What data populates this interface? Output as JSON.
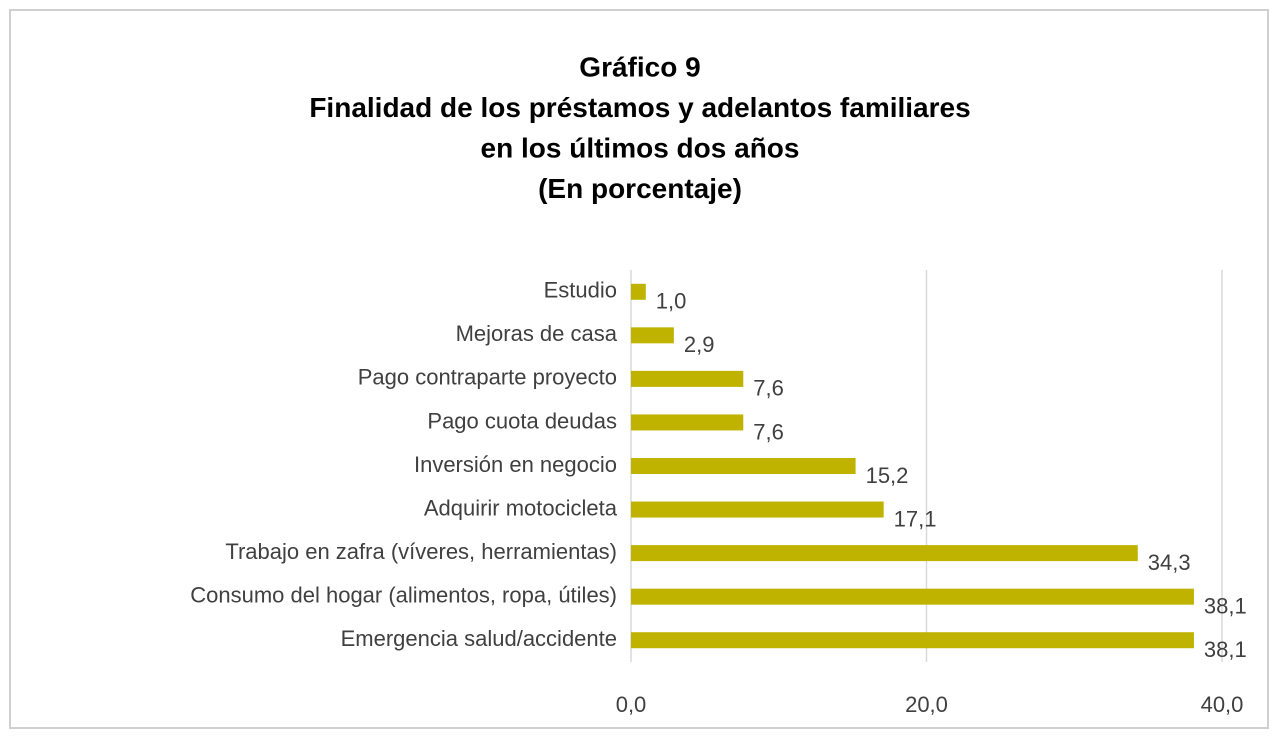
{
  "chart_data": {
    "type": "bar",
    "orientation": "horizontal",
    "title": [
      "Gráfico 9",
      "Finalidad de los préstamos y adelantos familiares",
      "en los últimos dos años",
      "(En porcentaje)"
    ],
    "categories": [
      "Estudio",
      "Mejoras de casa",
      "Pago contraparte proyecto",
      "Pago cuota deudas",
      "Inversión en negocio",
      "Adquirir motocicleta",
      "Trabajo en zafra (víveres, herramientas)",
      "Consumo del hogar (alimentos, ropa, útiles)",
      "Emergencia salud/accidente"
    ],
    "values": [
      1.0,
      2.9,
      7.6,
      7.6,
      15.2,
      17.1,
      34.3,
      38.1,
      38.1
    ],
    "value_labels": [
      "1,0",
      "2,9",
      "7,6",
      "7,6",
      "15,2",
      "17,1",
      "34,3",
      "38,1",
      "38,1"
    ],
    "color": "#bfb300",
    "xlim": [
      0,
      40
    ],
    "xticks": [
      {
        "value": 0,
        "label": "0,0"
      },
      {
        "value": 20,
        "label": "20,0"
      },
      {
        "value": 40,
        "label": "40,0"
      }
    ],
    "grid": true
  }
}
